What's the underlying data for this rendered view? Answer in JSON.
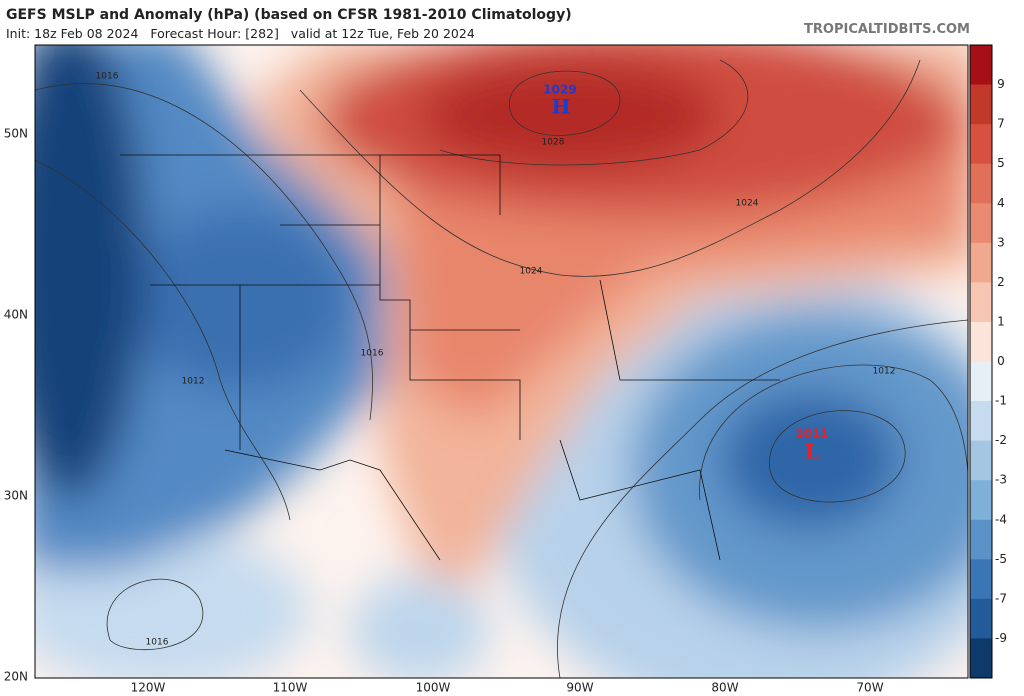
{
  "header": {
    "title": "GEFS MSLP and Anomaly (hPa) (based on CFSR 1981-2010 Climatology)",
    "subtitle": "Init: 18z Feb 08 2024   Forecast Hour: [282]   valid at 12z Tue, Feb 20 2024",
    "source": "TROPICALTIDBITS.COM"
  },
  "colorbar": {
    "ticks": [
      "9",
      "7",
      "5",
      "4",
      "3",
      "2",
      "1",
      "0",
      "-1",
      "-2",
      "-3",
      "-4",
      "-5",
      "-7",
      "-9"
    ]
  },
  "axes": {
    "lat_labels": [
      "50N",
      "40N",
      "30N",
      "20N"
    ],
    "lon_labels": [
      "120W",
      "110W",
      "100W",
      "90W",
      "80W",
      "70W"
    ]
  },
  "contour_labels": [
    "1016",
    "1012",
    "1016",
    "1024",
    "1028",
    "1024",
    "1012",
    "1016"
  ],
  "centers": [
    {
      "value": "1029",
      "symbol": "H"
    },
    {
      "value": "1011",
      "symbol": "L"
    }
  ]
}
